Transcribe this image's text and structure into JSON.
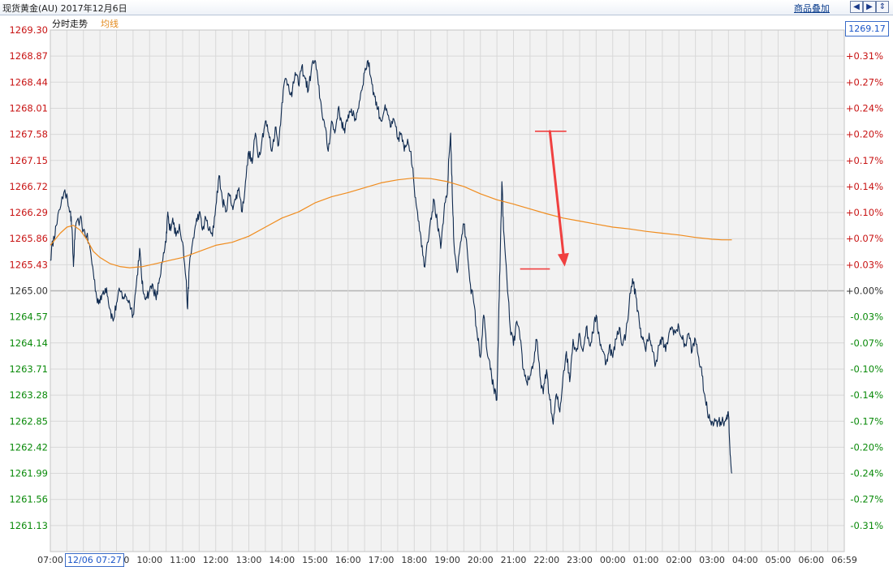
{
  "window": {
    "title": "现货黄金(AU) 2017年12月6日",
    "overlay_button": "商品叠加",
    "nav_icons": [
      "arrow-left-icon",
      "arrow-right-icon",
      "arrow-up-down-icon"
    ]
  },
  "legend": {
    "price_line": "分时走势",
    "average_line": "均线"
  },
  "current_price_label": "1269.17",
  "crosshair_time_label": "12/06 07:27",
  "colors": {
    "price_line": "#0f2a4f",
    "average_line": "#f08c1e",
    "up_text": "#c81414",
    "down_text": "#0a8a0a",
    "annotation": "#f04040",
    "grid": "#d8d8d8",
    "plot_bg": "#f2f2f2"
  },
  "chart_data": {
    "type": "line",
    "title": "",
    "xlabel": "",
    "ylabel": "",
    "reference_price": 1265.0,
    "ylim": [
      1260.7,
      1269.3
    ],
    "y_ticks": [
      1269.3,
      1268.87,
      1268.44,
      1268.01,
      1267.58,
      1267.15,
      1266.72,
      1266.29,
      1265.86,
      1265.43,
      1265.0,
      1264.57,
      1264.14,
      1263.71,
      1263.28,
      1262.85,
      1262.42,
      1261.99,
      1261.56,
      1261.13
    ],
    "y_tick_labels": [
      "1269.30",
      "1268.87",
      "1268.44",
      "1268.01",
      "1267.58",
      "1267.15",
      "1266.72",
      "1266.29",
      "1265.86",
      "1265.43",
      "1265.00",
      "1264.57",
      "1264.14",
      "1263.71",
      "1263.28",
      "1262.85",
      "1262.42",
      "1261.99",
      "1261.56",
      "1261.13"
    ],
    "pct_ticks": [
      1268.87,
      1268.44,
      1268.01,
      1267.58,
      1267.15,
      1266.72,
      1266.29,
      1265.86,
      1265.43,
      1265.0,
      1264.57,
      1264.14,
      1263.71,
      1263.28,
      1262.85,
      1262.42,
      1261.99,
      1261.56,
      1261.13
    ],
    "pct_labels": [
      "+0.31%",
      "+0.27%",
      "+0.24%",
      "+0.20%",
      "+0.17%",
      "+0.14%",
      "+0.10%",
      "+0.07%",
      "+0.03%",
      "+0.00%",
      "-0.03%",
      "-0.07%",
      "-0.10%",
      "-0.14%",
      "-0.17%",
      "-0.20%",
      "-0.24%",
      "-0.27%",
      "-0.31%"
    ],
    "x_ticks": [
      "07:00",
      "08:00",
      "09:00",
      "10:00",
      "11:00",
      "12:00",
      "13:00",
      "14:00",
      "15:00",
      "16:00",
      "17:00",
      "18:00",
      "19:00",
      "20:00",
      "21:00",
      "22:00",
      "23:00",
      "00:00",
      "01:00",
      "02:00",
      "03:00",
      "04:00",
      "05:00",
      "06:00",
      "06:59"
    ],
    "series": [
      {
        "values": [
          [
            0.0,
            1265.5
          ],
          [
            0.1,
            1265.9
          ],
          [
            0.2,
            1266.1
          ],
          [
            0.35,
            1266.55
          ],
          [
            0.5,
            1266.6
          ],
          [
            0.6,
            1266.3
          ],
          [
            0.65,
            1266.05
          ],
          [
            0.7,
            1265.4
          ],
          [
            0.75,
            1266.0
          ],
          [
            0.9,
            1266.2
          ],
          [
            1.0,
            1266.0
          ],
          [
            1.1,
            1265.9
          ],
          [
            1.2,
            1265.7
          ],
          [
            1.3,
            1265.3
          ],
          [
            1.4,
            1264.9
          ],
          [
            1.5,
            1264.8
          ],
          [
            1.6,
            1265.0
          ],
          [
            1.7,
            1265.05
          ],
          [
            1.8,
            1264.7
          ],
          [
            1.9,
            1264.5
          ],
          [
            2.0,
            1264.8
          ],
          [
            2.1,
            1265.0
          ],
          [
            2.2,
            1264.9
          ],
          [
            2.3,
            1264.9
          ],
          [
            2.4,
            1264.8
          ],
          [
            2.5,
            1264.6
          ],
          [
            2.6,
            1265.1
          ],
          [
            2.7,
            1265.7
          ],
          [
            2.75,
            1265.3
          ],
          [
            2.8,
            1265.0
          ],
          [
            2.9,
            1264.9
          ],
          [
            3.0,
            1265.0
          ],
          [
            3.1,
            1265.1
          ],
          [
            3.2,
            1264.85
          ],
          [
            3.3,
            1265.2
          ],
          [
            3.4,
            1265.5
          ],
          [
            3.5,
            1265.8
          ],
          [
            3.55,
            1266.3
          ],
          [
            3.6,
            1266.0
          ],
          [
            3.7,
            1266.2
          ],
          [
            3.8,
            1265.9
          ],
          [
            3.9,
            1266.1
          ],
          [
            4.0,
            1265.8
          ],
          [
            4.1,
            1265.2
          ],
          [
            4.15,
            1264.7
          ],
          [
            4.2,
            1265.4
          ],
          [
            4.3,
            1265.8
          ],
          [
            4.4,
            1266.1
          ],
          [
            4.5,
            1266.3
          ],
          [
            4.6,
            1266.0
          ],
          [
            4.7,
            1266.2
          ],
          [
            4.8,
            1266.0
          ],
          [
            4.9,
            1265.9
          ],
          [
            5.0,
            1266.4
          ],
          [
            5.1,
            1266.9
          ],
          [
            5.2,
            1266.5
          ],
          [
            5.3,
            1266.3
          ],
          [
            5.4,
            1266.6
          ],
          [
            5.5,
            1266.4
          ],
          [
            5.6,
            1266.5
          ],
          [
            5.7,
            1266.7
          ],
          [
            5.8,
            1266.3
          ],
          [
            5.9,
            1266.8
          ],
          [
            6.0,
            1267.3
          ],
          [
            6.1,
            1267.1
          ],
          [
            6.2,
            1267.6
          ],
          [
            6.3,
            1267.2
          ],
          [
            6.4,
            1267.5
          ],
          [
            6.5,
            1267.8
          ],
          [
            6.6,
            1267.6
          ],
          [
            6.7,
            1267.3
          ],
          [
            6.8,
            1267.7
          ],
          [
            6.9,
            1267.4
          ],
          [
            7.0,
            1268.1
          ],
          [
            7.1,
            1268.5
          ],
          [
            7.2,
            1268.4
          ],
          [
            7.3,
            1268.2
          ],
          [
            7.4,
            1268.6
          ],
          [
            7.5,
            1268.4
          ],
          [
            7.6,
            1268.7
          ],
          [
            7.7,
            1268.5
          ],
          [
            7.8,
            1268.3
          ],
          [
            7.9,
            1268.7
          ],
          [
            8.0,
            1268.8
          ],
          [
            8.1,
            1268.4
          ],
          [
            8.2,
            1268.0
          ],
          [
            8.3,
            1267.7
          ],
          [
            8.4,
            1267.3
          ],
          [
            8.5,
            1267.8
          ],
          [
            8.6,
            1267.6
          ],
          [
            8.7,
            1268.0
          ],
          [
            8.8,
            1267.8
          ],
          [
            8.9,
            1267.6
          ],
          [
            9.0,
            1267.9
          ],
          [
            9.1,
            1268.0
          ],
          [
            9.2,
            1267.8
          ],
          [
            9.3,
            1268.0
          ],
          [
            9.4,
            1268.3
          ],
          [
            9.5,
            1268.6
          ],
          [
            9.6,
            1268.8
          ],
          [
            9.7,
            1268.5
          ],
          [
            9.8,
            1268.2
          ],
          [
            9.9,
            1268.0
          ],
          [
            10.0,
            1267.8
          ],
          [
            10.1,
            1268.0
          ],
          [
            10.2,
            1267.9
          ],
          [
            10.3,
            1267.7
          ],
          [
            10.4,
            1267.8
          ],
          [
            10.5,
            1267.5
          ],
          [
            10.6,
            1267.6
          ],
          [
            10.7,
            1267.3
          ],
          [
            10.8,
            1267.5
          ],
          [
            10.9,
            1267.3
          ],
          [
            11.0,
            1266.7
          ],
          [
            11.1,
            1266.3
          ],
          [
            11.2,
            1265.9
          ],
          [
            11.3,
            1265.4
          ],
          [
            11.4,
            1265.8
          ],
          [
            11.5,
            1266.2
          ],
          [
            11.6,
            1266.5
          ],
          [
            11.7,
            1266.1
          ],
          [
            11.8,
            1265.7
          ],
          [
            11.9,
            1266.3
          ],
          [
            12.0,
            1266.6
          ],
          [
            12.05,
            1267.2
          ],
          [
            12.1,
            1267.6
          ],
          [
            12.15,
            1266.6
          ],
          [
            12.2,
            1265.8
          ],
          [
            12.3,
            1265.3
          ],
          [
            12.4,
            1265.8
          ],
          [
            12.5,
            1266.1
          ],
          [
            12.6,
            1265.7
          ],
          [
            12.7,
            1265.1
          ],
          [
            12.8,
            1264.8
          ],
          [
            12.9,
            1264.3
          ],
          [
            13.0,
            1263.9
          ],
          [
            13.1,
            1264.6
          ],
          [
            13.2,
            1264.0
          ],
          [
            13.3,
            1263.7
          ],
          [
            13.4,
            1263.4
          ],
          [
            13.5,
            1263.2
          ],
          [
            13.55,
            1264.5
          ],
          [
            13.6,
            1265.6
          ],
          [
            13.65,
            1266.8
          ],
          [
            13.7,
            1266.0
          ],
          [
            13.8,
            1265.2
          ],
          [
            13.9,
            1264.4
          ],
          [
            14.0,
            1264.1
          ],
          [
            14.1,
            1264.5
          ],
          [
            14.2,
            1264.2
          ],
          [
            14.3,
            1263.7
          ],
          [
            14.4,
            1263.5
          ],
          [
            14.5,
            1263.6
          ],
          [
            14.6,
            1263.8
          ],
          [
            14.7,
            1264.2
          ],
          [
            14.8,
            1263.6
          ],
          [
            14.9,
            1263.3
          ],
          [
            15.0,
            1263.7
          ],
          [
            15.1,
            1263.2
          ],
          [
            15.2,
            1262.8
          ],
          [
            15.3,
            1263.3
          ],
          [
            15.4,
            1263.0
          ],
          [
            15.5,
            1263.6
          ],
          [
            15.6,
            1264.0
          ],
          [
            15.7,
            1263.5
          ],
          [
            15.8,
            1264.2
          ],
          [
            15.9,
            1264.0
          ],
          [
            16.0,
            1264.3
          ],
          [
            16.1,
            1264.0
          ],
          [
            16.2,
            1264.4
          ],
          [
            16.3,
            1264.1
          ],
          [
            16.4,
            1264.3
          ],
          [
            16.5,
            1264.6
          ],
          [
            16.6,
            1264.2
          ],
          [
            16.7,
            1264.0
          ],
          [
            16.8,
            1263.8
          ],
          [
            16.9,
            1264.1
          ],
          [
            17.0,
            1263.9
          ],
          [
            17.1,
            1264.2
          ],
          [
            17.2,
            1264.4
          ],
          [
            17.3,
            1264.1
          ],
          [
            17.4,
            1264.3
          ],
          [
            17.5,
            1264.8
          ],
          [
            17.6,
            1265.2
          ],
          [
            17.7,
            1264.9
          ],
          [
            17.8,
            1264.5
          ],
          [
            17.9,
            1264.2
          ],
          [
            18.0,
            1264.0
          ],
          [
            18.1,
            1264.3
          ],
          [
            18.2,
            1264.0
          ],
          [
            18.3,
            1263.8
          ],
          [
            18.4,
            1264.1
          ],
          [
            18.5,
            1264.2
          ],
          [
            18.6,
            1264.0
          ],
          [
            18.7,
            1264.3
          ],
          [
            18.8,
            1264.4
          ],
          [
            18.9,
            1264.3
          ],
          [
            19.0,
            1264.4
          ],
          [
            19.1,
            1264.2
          ],
          [
            19.2,
            1264.1
          ],
          [
            19.3,
            1264.3
          ],
          [
            19.4,
            1264.0
          ],
          [
            19.5,
            1264.2
          ],
          [
            19.6,
            1263.9
          ],
          [
            19.7,
            1263.6
          ],
          [
            19.8,
            1263.2
          ],
          [
            19.9,
            1262.9
          ],
          [
            20.0,
            1262.85
          ],
          [
            20.1,
            1262.85
          ],
          [
            20.2,
            1262.85
          ],
          [
            20.3,
            1262.85
          ],
          [
            20.4,
            1262.85
          ],
          [
            20.45,
            1262.95
          ],
          [
            20.5,
            1262.95
          ],
          [
            20.55,
            1262.3
          ],
          [
            20.6,
            1261.99
          ]
        ]
      },
      {
        "values": [
          [
            0.0,
            1265.75
          ],
          [
            0.3,
            1265.95
          ],
          [
            0.5,
            1266.05
          ],
          [
            0.7,
            1266.08
          ],
          [
            0.9,
            1266.0
          ],
          [
            1.1,
            1265.85
          ],
          [
            1.3,
            1265.65
          ],
          [
            1.5,
            1265.55
          ],
          [
            1.8,
            1265.45
          ],
          [
            2.1,
            1265.4
          ],
          [
            2.4,
            1265.38
          ],
          [
            2.8,
            1265.4
          ],
          [
            3.2,
            1265.45
          ],
          [
            3.6,
            1265.5
          ],
          [
            4.0,
            1265.55
          ],
          [
            4.5,
            1265.65
          ],
          [
            5.0,
            1265.75
          ],
          [
            5.5,
            1265.8
          ],
          [
            6.0,
            1265.9
          ],
          [
            6.5,
            1266.05
          ],
          [
            7.0,
            1266.2
          ],
          [
            7.5,
            1266.3
          ],
          [
            8.0,
            1266.45
          ],
          [
            8.5,
            1266.55
          ],
          [
            9.0,
            1266.62
          ],
          [
            9.5,
            1266.7
          ],
          [
            10.0,
            1266.78
          ],
          [
            10.5,
            1266.83
          ],
          [
            11.0,
            1266.86
          ],
          [
            11.5,
            1266.85
          ],
          [
            12.0,
            1266.8
          ],
          [
            12.5,
            1266.72
          ],
          [
            13.0,
            1266.6
          ],
          [
            13.5,
            1266.5
          ],
          [
            14.0,
            1266.43
          ],
          [
            14.5,
            1266.35
          ],
          [
            15.0,
            1266.27
          ],
          [
            15.5,
            1266.2
          ],
          [
            16.0,
            1266.15
          ],
          [
            16.5,
            1266.1
          ],
          [
            17.0,
            1266.05
          ],
          [
            17.5,
            1266.02
          ],
          [
            18.0,
            1265.98
          ],
          [
            18.5,
            1265.95
          ],
          [
            19.0,
            1265.92
          ],
          [
            19.5,
            1265.88
          ],
          [
            20.0,
            1265.85
          ],
          [
            20.3,
            1265.84
          ],
          [
            20.6,
            1265.84
          ]
        ]
      }
    ],
    "annotations": [
      {
        "type": "hline",
        "y": 1267.63,
        "x": [
          14.65,
          15.6
        ]
      },
      {
        "type": "hline",
        "y": 1265.36,
        "x": [
          14.2,
          15.1
        ]
      },
      {
        "type": "arrow",
        "from": [
          15.1,
          1267.63
        ],
        "to": [
          15.55,
          1265.4
        ]
      }
    ]
  }
}
